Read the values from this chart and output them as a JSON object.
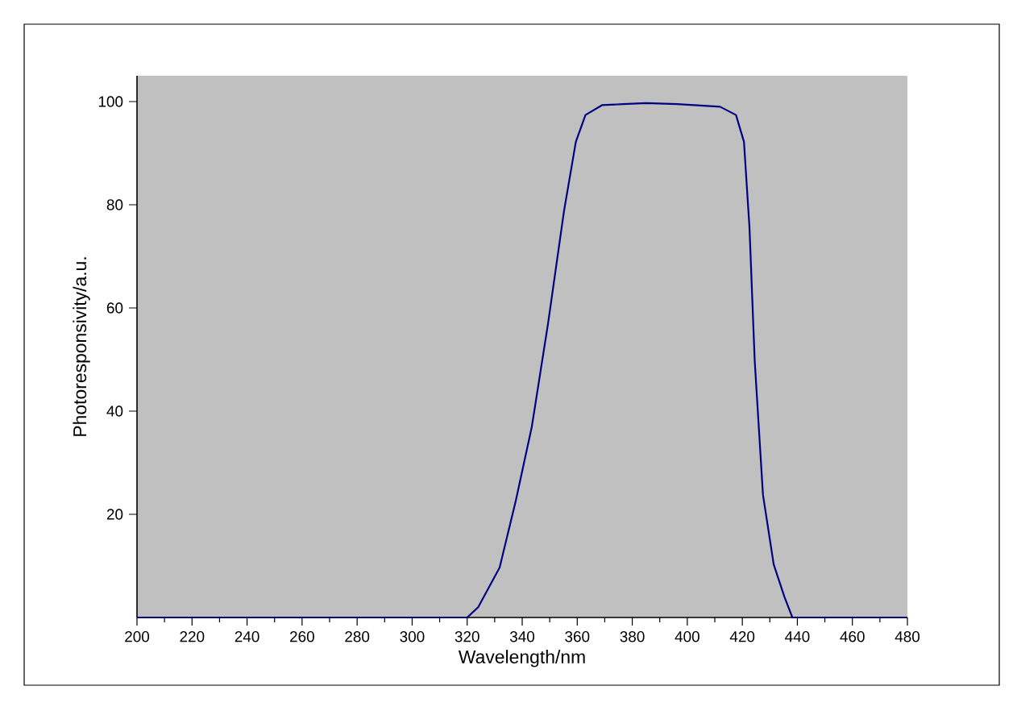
{
  "chart_data": {
    "type": "line",
    "xlabel": "Wavelength/nm",
    "ylabel": "Photoresponsivity/a.u.",
    "x": [
      200,
      250,
      300,
      320,
      324,
      331.8,
      337.7,
      343.5,
      349.4,
      355.2,
      359.5,
      363,
      369,
      376.7,
      385,
      396.3,
      411.9,
      417.7,
      420.6,
      422.6,
      424.5,
      427.5,
      431.4,
      435.3,
      438.2,
      460,
      480
    ],
    "series": [
      {
        "color": "#000080",
        "values": [
          0,
          0,
          0,
          0,
          2,
          9.7,
          22.7,
          37,
          57,
          78.8,
          92.2,
          97.4,
          99.3,
          99.5,
          99.7,
          99.5,
          99,
          97.4,
          92.2,
          75.6,
          49.8,
          23.8,
          10.3,
          4,
          0,
          0,
          0
        ]
      }
    ],
    "xlim": [
      200,
      480
    ],
    "ylim": [
      0,
      105
    ],
    "xticks": [
      200,
      220,
      240,
      260,
      280,
      300,
      320,
      340,
      360,
      380,
      400,
      420,
      440,
      460,
      480
    ],
    "yticks": [
      20,
      40,
      60,
      80,
      100
    ],
    "grid": false,
    "marker": "none",
    "line_style": "solid"
  }
}
